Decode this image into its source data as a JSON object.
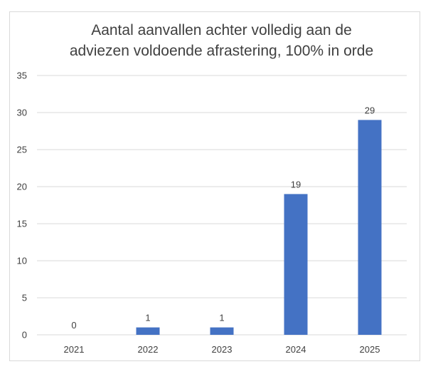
{
  "chart_data": {
    "type": "bar",
    "title_lines": [
      "Aantal aanvallen achter volledig aan de",
      "adviezen voldoende afrastering, 100% in orde"
    ],
    "categories": [
      "2021",
      "2022",
      "2023",
      "2024",
      "2025"
    ],
    "values": [
      0,
      1,
      1,
      19,
      29
    ],
    "data_labels": [
      "0",
      "1",
      "1",
      "19",
      "29"
    ],
    "xlabel": "",
    "ylabel": "",
    "ylim": [
      0,
      35
    ],
    "yticks": [
      "0",
      "5",
      "10",
      "15",
      "20",
      "25",
      "30",
      "35"
    ],
    "grid": true,
    "legend": "none",
    "bar_color": "#4472c4",
    "grid_color": "#d9d9d9"
  }
}
